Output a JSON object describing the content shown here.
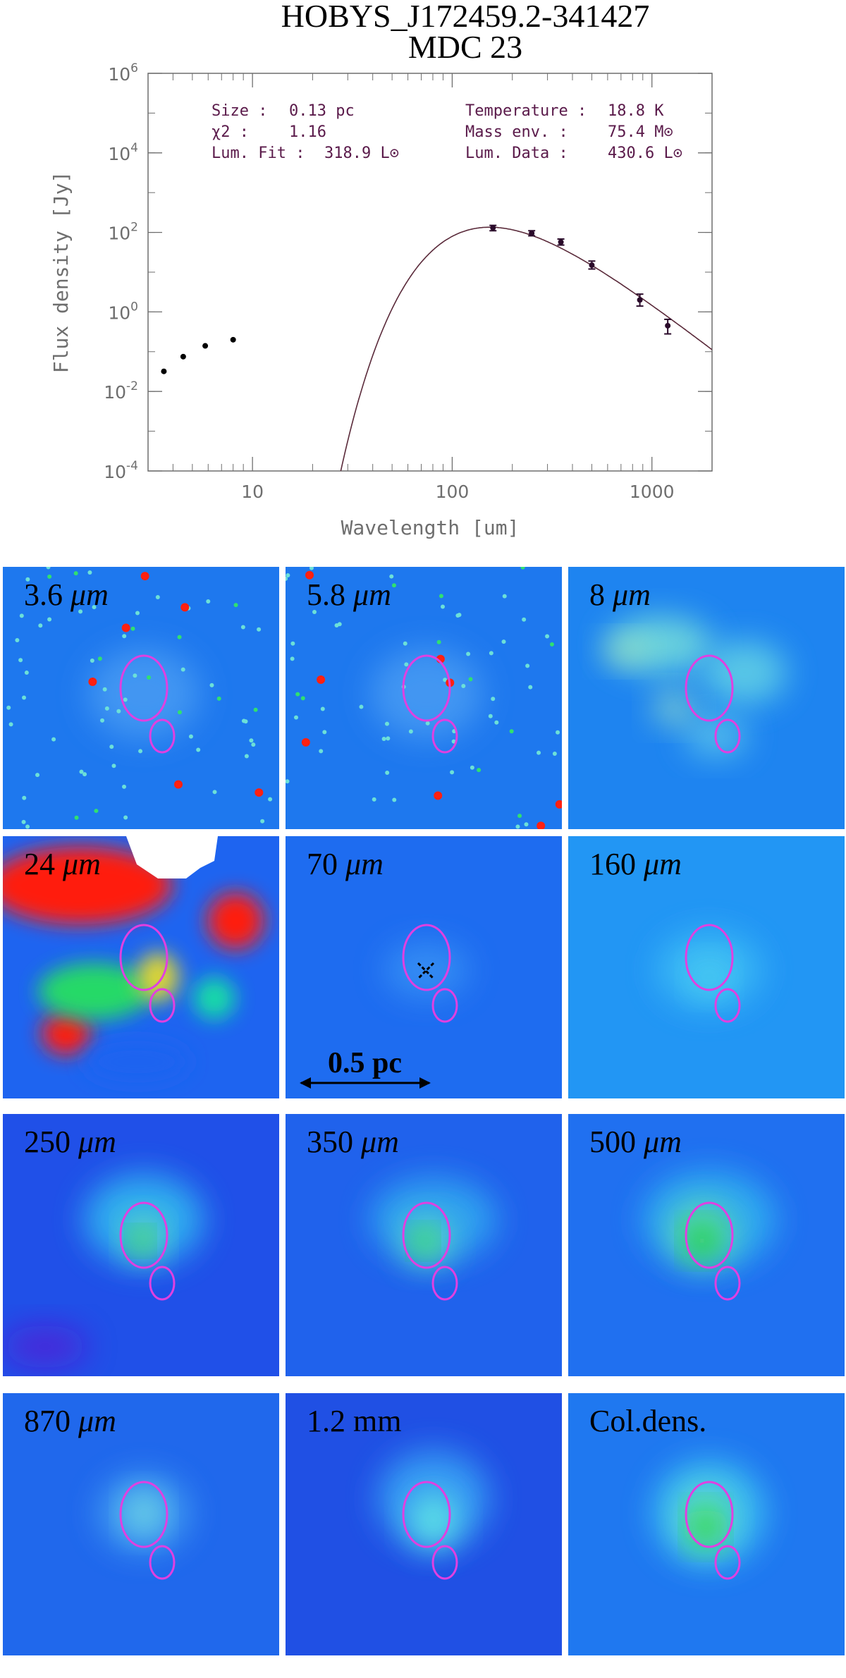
{
  "title": {
    "line1": "HOBYS_J172459.2-341427",
    "line2": "MDC 23"
  },
  "chart_data": {
    "type": "scatter",
    "title": "HOBYS_J172459.2-341427 MDC 23",
    "xlabel": "Wavelength [um]",
    "ylabel": "Flux density [Jy]",
    "xscale": "log",
    "yscale": "log",
    "xlim": [
      3,
      2000
    ],
    "ylim": [
      0.0001,
      1000000
    ],
    "x_tick_labels": [
      "10",
      "100",
      "1000"
    ],
    "x_ticks": [
      10,
      100,
      1000
    ],
    "y_ticks": [
      {
        "base": "10",
        "exp": "-4",
        "value": 0.0001
      },
      {
        "base": "10",
        "exp": "-2",
        "value": 0.01
      },
      {
        "base": "10",
        "exp": "0",
        "value": 1
      },
      {
        "base": "10",
        "exp": "2",
        "value": 100
      },
      {
        "base": "10",
        "exp": "4",
        "value": 10000
      },
      {
        "base": "10",
        "exp": "6",
        "value": 1000000
      }
    ],
    "annotations": {
      "left": [
        {
          "label": "Size :",
          "value": "0.13 pc"
        },
        {
          "label": "χ2 :",
          "value": "1.16"
        },
        {
          "label": "Lum. Fit :",
          "value": "318.9 L⊙"
        }
      ],
      "right": [
        {
          "label": "Temperature :",
          "value": "18.8 K"
        },
        {
          "label": "Mass env.   :",
          "value": "75.4 M⊙"
        },
        {
          "label": "Lum. Data :",
          "value": "430.6 L⊙"
        }
      ]
    },
    "series": [
      {
        "kind": "points_with_errors",
        "x": [
          160,
          250,
          350,
          500,
          870,
          1200
        ],
        "y": [
          130,
          95,
          57,
          15,
          2.0,
          0.45
        ],
        "err_low": [
          110,
          82,
          48,
          12,
          1.4,
          0.28
        ],
        "err_high": [
          150,
          110,
          68,
          19,
          2.8,
          0.65
        ]
      },
      {
        "kind": "points",
        "x": [
          3.6,
          4.5,
          5.8,
          8.0
        ],
        "y": [
          0.032,
          0.075,
          0.14,
          0.2
        ]
      },
      {
        "kind": "model_curve",
        "model": "modified_blackbody",
        "temperature_K": 18.8,
        "beta": 2.0,
        "peak_flux": 135
      }
    ],
    "grid": false,
    "legend": "none",
    "colors": {
      "curve": "#5a2a3a",
      "points": "#2a0a2a",
      "axis": "#6e6e6e",
      "text": "#5a1a4a"
    }
  },
  "panels": [
    {
      "num": "3.6",
      "unit": "μm",
      "type": "irac"
    },
    {
      "num": "5.8",
      "unit": "μm",
      "type": "irac"
    },
    {
      "num": "8",
      "unit": "μm",
      "type": "pah"
    },
    {
      "num": "24",
      "unit": "μm",
      "type": "mips"
    },
    {
      "num": "70",
      "unit": "μm",
      "type": "p70"
    },
    {
      "num": "160",
      "unit": "μm",
      "type": "p160"
    },
    {
      "num": "250",
      "unit": "μm",
      "type": "s250"
    },
    {
      "num": "350",
      "unit": "μm",
      "type": "s350"
    },
    {
      "num": "500",
      "unit": "μm",
      "type": "s500"
    },
    {
      "num": "870",
      "unit": "μm",
      "type": "laboca"
    },
    {
      "num": "1.2 mm",
      "unit": "",
      "type": "mm"
    },
    {
      "num": "Col.dens.",
      "unit": "",
      "type": "coldens"
    }
  ],
  "scalebar": {
    "label": "0.5 pc"
  },
  "colors": {
    "ellipse": "#e040e0",
    "background_blue": "#1e6cf0"
  }
}
